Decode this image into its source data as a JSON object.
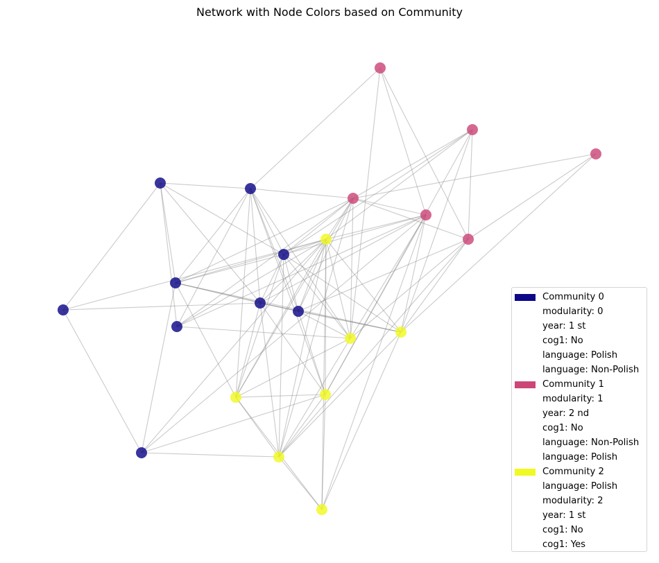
{
  "title": "Network with Node Colors based on Community",
  "colors": {
    "community_0": "#0d0887",
    "community_1": "#cc4778",
    "community_2": "#f0f921",
    "edge": "#808080"
  },
  "communities": [
    {
      "id": 0,
      "label": "Community 0",
      "color": "#0d0887",
      "attributes": [
        "modularity: 0",
        "year: 1 st",
        "cog1: No",
        "language: Polish",
        "language: Non-Polish"
      ]
    },
    {
      "id": 1,
      "label": "Community 1",
      "color": "#cc4778",
      "attributes": [
        "modularity: 1",
        "year: 2 nd",
        "cog1: No",
        "language: Non-Polish",
        "language: Polish"
      ]
    },
    {
      "id": 2,
      "label": "Community 2",
      "color": "#f0f921",
      "attributes": [
        "language: Polish",
        "modularity: 2",
        "year: 1 st",
        "cog1: No",
        "cog1: Yes"
      ]
    }
  ]
}
